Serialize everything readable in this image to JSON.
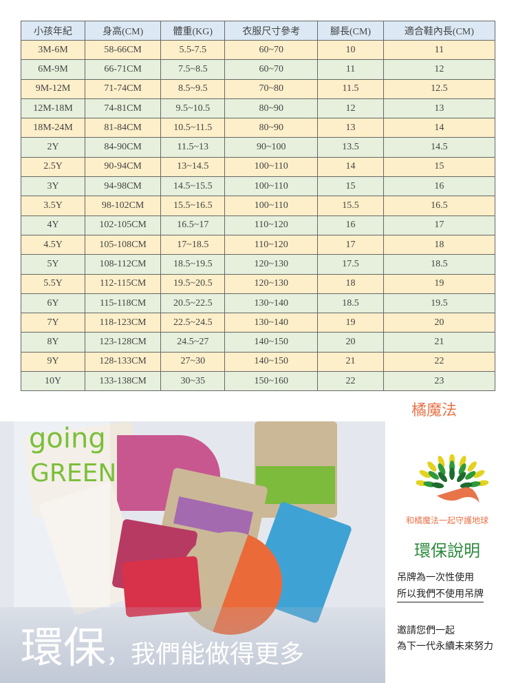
{
  "table": {
    "headers": [
      "小孩年紀",
      "身高(CM)",
      "體重(KG)",
      "衣服尺寸參考",
      "腳長(CM)",
      "適合鞋內長(CM)"
    ],
    "rows": [
      [
        "3M-6M",
        "58-66CM",
        "5.5-7.5",
        "60~70",
        "10",
        "11"
      ],
      [
        "6M-9M",
        "66-71CM",
        "7.5~8.5",
        "60~70",
        "11",
        "12"
      ],
      [
        "9M-12M",
        "71-74CM",
        "8.5~9.5",
        "70~80",
        "11.5",
        "12.5"
      ],
      [
        "12M-18M",
        "74-81CM",
        "9.5~10.5",
        "80~90",
        "12",
        "13"
      ],
      [
        "18M-24M",
        "81-84CM",
        "10.5~11.5",
        "80~90",
        "13",
        "14"
      ],
      [
        "2Y",
        "84-90CM",
        "11.5~13",
        "90~100",
        "13.5",
        "14.5"
      ],
      [
        "2.5Y",
        "90-94CM",
        "13~14.5",
        "100~110",
        "14",
        "15"
      ],
      [
        "3Y",
        "94-98CM",
        "14.5~15.5",
        "100~110",
        "15",
        "16"
      ],
      [
        "3.5Y",
        "98-102CM",
        "15.5~16.5",
        "100~110",
        "15.5",
        "16.5"
      ],
      [
        "4Y",
        "102-105CM",
        "16.5~17",
        "110~120",
        "16",
        "17"
      ],
      [
        "4.5Y",
        "105-108CM",
        "17~18.5",
        "110~120",
        "17",
        "18"
      ],
      [
        "5Y",
        "108-112CM",
        "18.5~19.5",
        "120~130",
        "17.5",
        "18.5"
      ],
      [
        "5.5Y",
        "112-115CM",
        "19.5~20.5",
        "120~130",
        "18",
        "19"
      ],
      [
        "6Y",
        "115-118CM",
        "20.5~22.5",
        "130~140",
        "18.5",
        "19.5"
      ],
      [
        "7Y",
        "118-123CM",
        "22.5~24.5",
        "130~140",
        "19",
        "20"
      ],
      [
        "8Y",
        "123-128CM",
        "24.5~27",
        "140~150",
        "20",
        "21"
      ],
      [
        "9Y",
        "128-133CM",
        "27~30",
        "140~150",
        "21",
        "22"
      ],
      [
        "10Y",
        "133-138CM",
        "30~35",
        "150~160",
        "22",
        "23"
      ]
    ]
  },
  "brand": "橘魔法",
  "banner": {
    "going": "going",
    "green": "GREEN",
    "slogan_big": "環保",
    "slogan_rest": "，我們能做得更多"
  },
  "side": {
    "tagline": "和橘魔法一起守護地球",
    "title": "環保說明",
    "line1": "吊牌為一次性使用",
    "line2": "所以我們不使用吊牌",
    "line3": "邀請您們一起",
    "line4": "為下一代永續未來努力"
  },
  "colors": {
    "header": "#dce9f5",
    "row_orange": "#fdefc9",
    "row_green": "#e6f0dc",
    "brand": "#e8744a",
    "green_text": "#2d8a3e"
  }
}
